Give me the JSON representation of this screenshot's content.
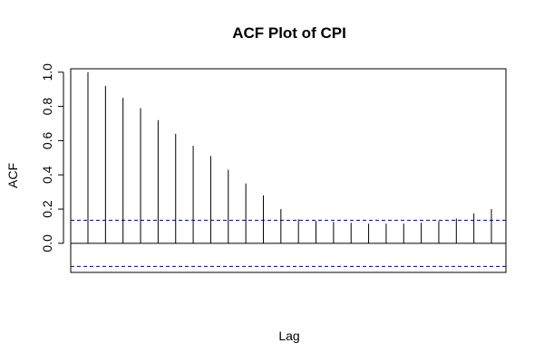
{
  "chart_data": {
    "type": "bar",
    "title": "ACF Plot of CPI",
    "xlabel": "Lag",
    "ylabel": "ACF",
    "ylim": [
      -0.17,
      1.02
    ],
    "yticks": [
      0.0,
      0.2,
      0.4,
      0.6,
      0.8,
      1.0
    ],
    "ytick_labels": [
      "0.0",
      "0.2",
      "0.4",
      "0.6",
      "0.8",
      "1.0"
    ],
    "lags": [
      0,
      1,
      2,
      3,
      4,
      5,
      6,
      7,
      8,
      9,
      10,
      11,
      12,
      13,
      14,
      15,
      16,
      17,
      18,
      19,
      20,
      21,
      22,
      23
    ],
    "values": [
      1.0,
      0.92,
      0.85,
      0.79,
      0.72,
      0.64,
      0.57,
      0.51,
      0.43,
      0.35,
      0.28,
      0.2,
      0.14,
      0.13,
      0.125,
      0.12,
      0.115,
      0.115,
      0.115,
      0.12,
      0.13,
      0.145,
      0.175,
      0.2
    ],
    "confidence_bound": 0.135,
    "colors": {
      "bars": "#000000",
      "confidence": "#00008b",
      "zero_line": "#000000"
    }
  }
}
